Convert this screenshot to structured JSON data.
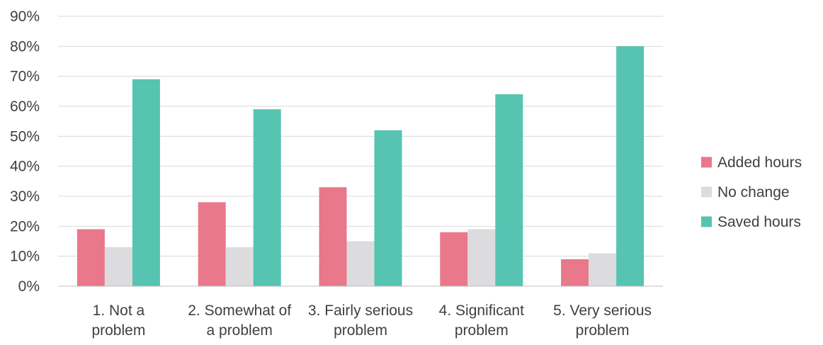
{
  "chart_data": {
    "type": "bar",
    "title": "",
    "xlabel": "",
    "ylabel": "",
    "ylim": [
      0,
      90
    ],
    "y_ticks": [
      0,
      10,
      20,
      30,
      40,
      50,
      60,
      70,
      80,
      90
    ],
    "y_tick_labels": [
      "0%",
      "10%",
      "20%",
      "30%",
      "40%",
      "50%",
      "60%",
      "70%",
      "80%",
      "90%"
    ],
    "grid": true,
    "legend_position": "right",
    "categories": [
      [
        "1. Not a",
        "problem"
      ],
      [
        "2. Somewhat of",
        "a problem"
      ],
      [
        "3. Fairly serious",
        "problem"
      ],
      [
        "4. Significant",
        "problem"
      ],
      [
        "5. Very serious",
        "problem"
      ]
    ],
    "series": [
      {
        "name": "Added hours",
        "color": "#e8788a",
        "values": [
          19,
          28,
          33,
          18,
          9
        ]
      },
      {
        "name": "No change",
        "color": "#dcdcdf",
        "values": [
          13,
          13,
          15,
          19,
          11
        ]
      },
      {
        "name": "Saved hours",
        "color": "#56c4b0",
        "values": [
          69,
          59,
          52,
          64,
          80
        ]
      }
    ]
  }
}
